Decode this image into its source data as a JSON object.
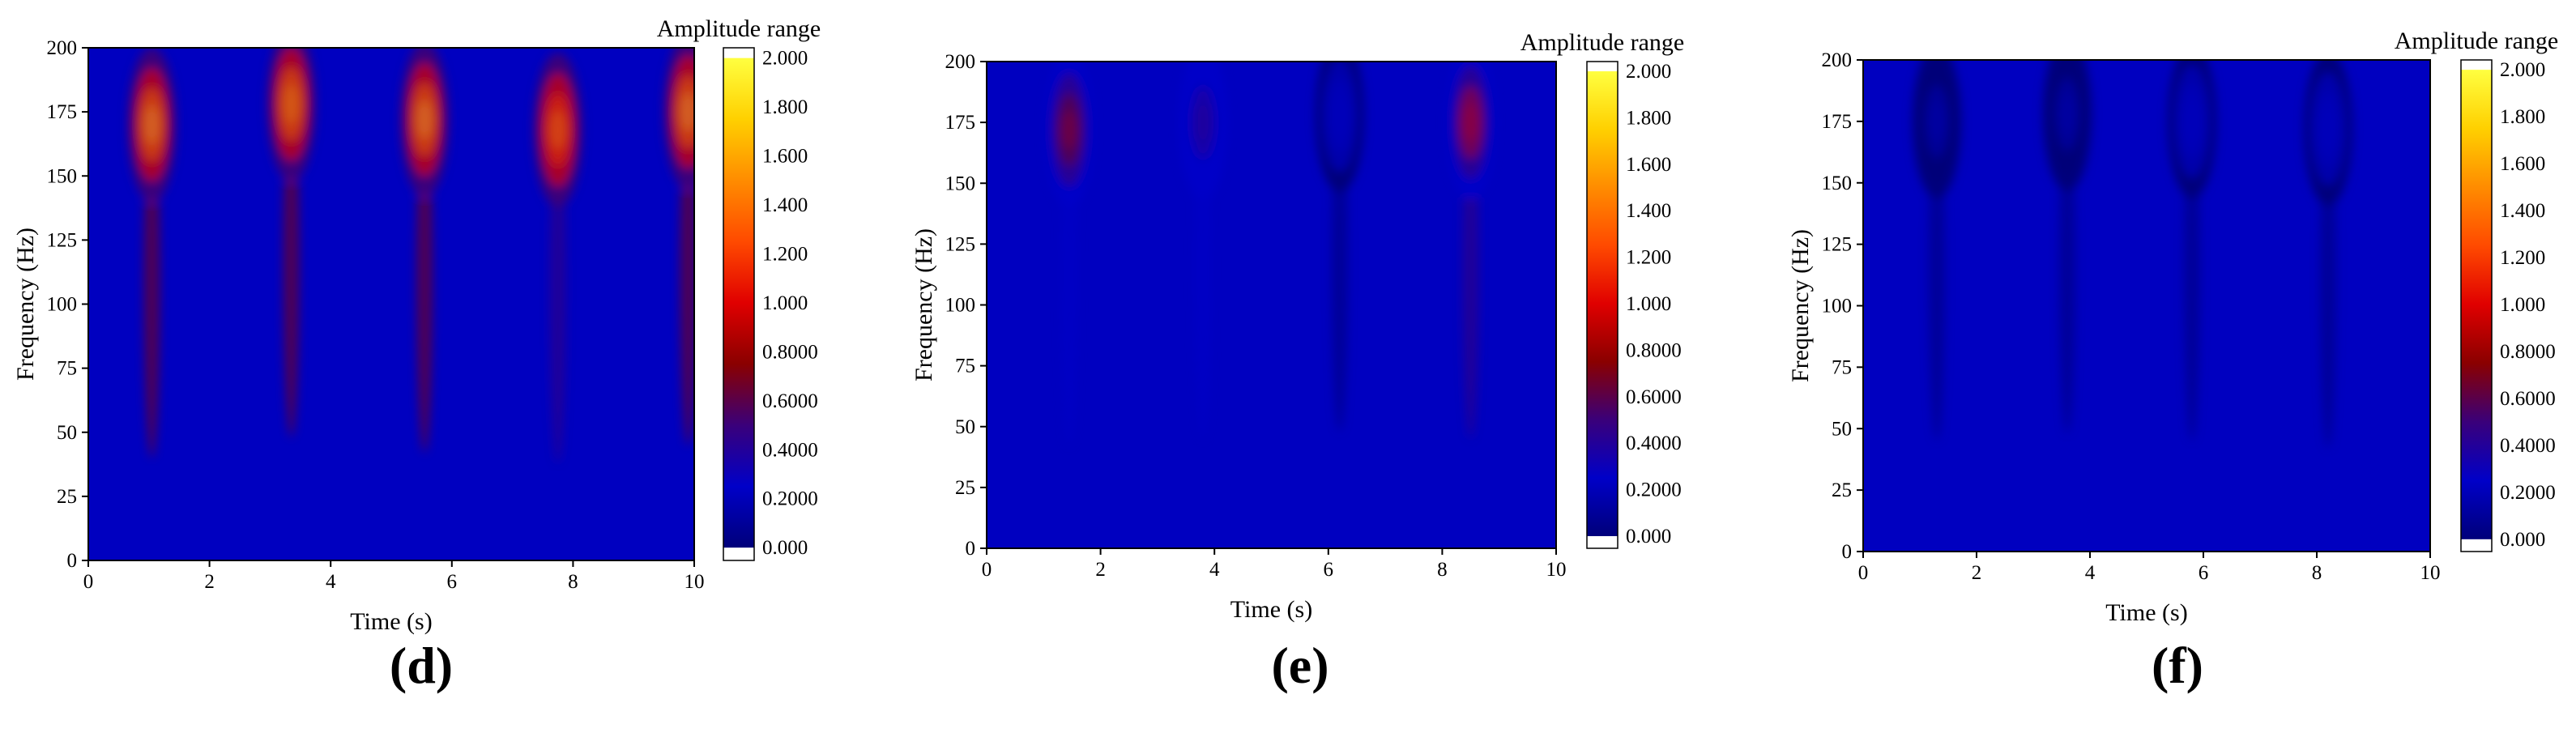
{
  "colors": {
    "background_blue": "#0000c0",
    "colorscale": [
      "#00007a",
      "#0000c8",
      "#3a007a",
      "#8a0000",
      "#e00000",
      "#ff4a00",
      "#ff8c00",
      "#ffd000",
      "#ffff40"
    ],
    "axis": "#000000"
  },
  "chart_data": [
    {
      "type": "heatmap",
      "panel_label": "(d)",
      "xlabel": "Time (s)",
      "ylabel": "Frequency (Hz)",
      "xlim": [
        0,
        10
      ],
      "ylim": [
        0,
        200
      ],
      "xticks": [
        0,
        2,
        4,
        6,
        8,
        10
      ],
      "yticks": [
        0,
        25,
        50,
        75,
        100,
        125,
        150,
        175,
        200
      ],
      "colorbar": {
        "title": "Amplitude range",
        "range": [
          0,
          2.0
        ],
        "ticks": [
          "0.000",
          "0.2000",
          "0.4000",
          "0.6000",
          "0.8000",
          "1.000",
          "1.200",
          "1.400",
          "1.600",
          "1.800",
          "2.000"
        ]
      },
      "hotspots": [
        {
          "t": 1.05,
          "f": 170,
          "amplitude": 1.9
        },
        {
          "t": 3.35,
          "f": 178,
          "amplitude": 1.85
        },
        {
          "t": 5.55,
          "f": 172,
          "amplitude": 1.9
        },
        {
          "t": 7.75,
          "f": 168,
          "amplitude": 1.7
        },
        {
          "t": 9.9,
          "f": 175,
          "amplitude": 1.9
        }
      ]
    },
    {
      "type": "heatmap",
      "panel_label": "(e)",
      "xlabel": "Time (s)",
      "ylabel": "Frequency (Hz)",
      "xlim": [
        0,
        10
      ],
      "ylim": [
        0,
        200
      ],
      "xticks": [
        0,
        2,
        4,
        6,
        8,
        10
      ],
      "yticks": [
        0,
        25,
        50,
        75,
        100,
        125,
        150,
        175,
        200
      ],
      "colorbar": {
        "title": "Amplitude range",
        "range": [
          0,
          2.0
        ],
        "ticks": [
          "0.000",
          "0.2000",
          "0.4000",
          "0.6000",
          "0.8000",
          "1.000",
          "1.200",
          "1.400",
          "1.600",
          "1.800",
          "2.000"
        ]
      },
      "hotspots": [
        {
          "t": 1.45,
          "f": 172,
          "amplitude": 1.0
        },
        {
          "t": 3.8,
          "f": 175,
          "amplitude": 0.6
        },
        {
          "t": 6.2,
          "f": 178,
          "amplitude": 0.35
        },
        {
          "t": 8.5,
          "f": 175,
          "amplitude": 1.1
        }
      ]
    },
    {
      "type": "heatmap",
      "panel_label": "(f)",
      "xlabel": "Time (s)",
      "ylabel": "Frequency (Hz)",
      "xlim": [
        0,
        10
      ],
      "ylim": [
        0,
        200
      ],
      "xticks": [
        0,
        2,
        4,
        6,
        8,
        10
      ],
      "yticks": [
        0,
        25,
        50,
        75,
        100,
        125,
        150,
        175,
        200
      ],
      "colorbar": {
        "title": "Amplitude range",
        "range": [
          0,
          2.0
        ],
        "ticks": [
          "0.000",
          "0.2000",
          "0.4000",
          "0.6000",
          "0.8000",
          "1.000",
          "1.200",
          "1.400",
          "1.600",
          "1.800",
          "2.000"
        ]
      },
      "hotspots": [
        {
          "t": 1.3,
          "f": 175,
          "amplitude": 0.2
        },
        {
          "t": 3.6,
          "f": 178,
          "amplitude": 0.2
        },
        {
          "t": 5.8,
          "f": 175,
          "amplitude": 0.3
        },
        {
          "t": 8.2,
          "f": 172,
          "amplitude": 0.3
        }
      ]
    }
  ]
}
